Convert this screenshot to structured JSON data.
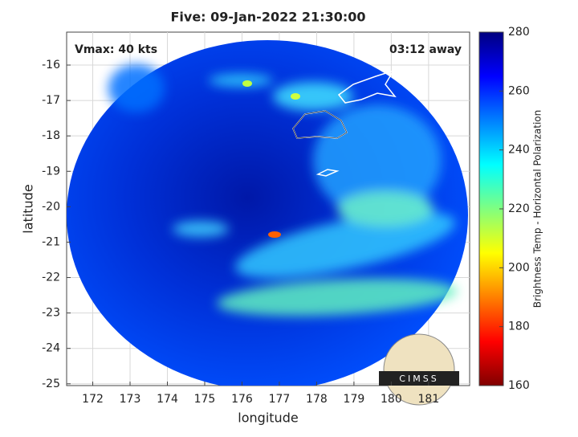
{
  "chart_data": {
    "type": "image",
    "title": "Five: 09-Jan-2022 21:30:00",
    "annotations": [
      "Vmax: 40 kts",
      "03:12 away"
    ],
    "x_label": "longitude",
    "y_label": "latitude",
    "xlim": [
      171.3,
      182.1
    ],
    "xticks": [
      172,
      173,
      174,
      175,
      176,
      177,
      178,
      179,
      180,
      181
    ],
    "ylim": [
      -25.05,
      -15.07
    ],
    "yticks": [
      -16,
      -17,
      -18,
      -19,
      -20,
      -21,
      -22,
      -23,
      -24,
      -25
    ],
    "grid": true,
    "colorbar": {
      "label": "Brightness Temp - Horizontal Polarization",
      "clim": [
        160,
        280
      ],
      "ticks": [
        160,
        180,
        200,
        220,
        240,
        260,
        280
      ],
      "colormap": [
        "#800000",
        "#ff0000",
        "#ff8000",
        "#ffff00",
        "#80ff80",
        "#00ffff",
        "#0080ff",
        "#0000ff",
        "#000080"
      ]
    },
    "logo": "CIMSS"
  }
}
